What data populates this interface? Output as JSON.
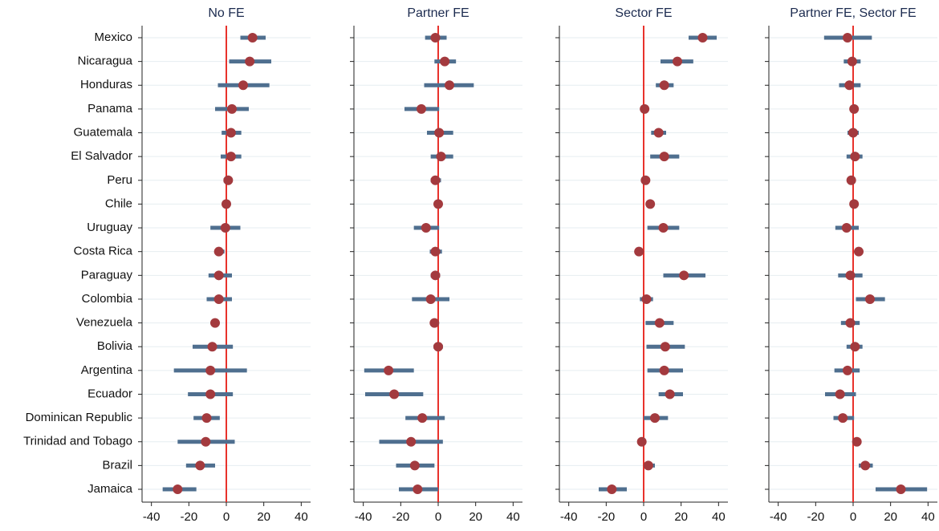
{
  "chart_data": [
    {
      "type": "coefplot",
      "title": "No FE",
      "categories": [
        "Mexico",
        "Nicaragua",
        "Honduras",
        "Panama",
        "Guatemala",
        "El Salvador",
        "Peru",
        "Chile",
        "Uruguay",
        "Costa Rica",
        "Paraguay",
        "Colombia",
        "Venezuela",
        "Bolivia",
        "Argentina",
        "Ecuador",
        "Dominican Republic",
        "Trinidad and Tobago",
        "Brazil",
        "Jamaica"
      ],
      "values": [
        14,
        12.5,
        9,
        3,
        2.5,
        2.5,
        1,
        0,
        -0.5,
        -4,
        -4,
        -4,
        -6,
        -7.5,
        -8.5,
        -8.5,
        -10.5,
        -11,
        -14,
        -26
      ],
      "lower": [
        7.5,
        1.5,
        -4.5,
        -6,
        -2.5,
        -3,
        -1.5,
        -1,
        -8.5,
        -6,
        -9.5,
        -10.5,
        -7,
        -18,
        -28,
        -20.5,
        -17.5,
        -26,
        -21.5,
        -34
      ],
      "upper": [
        21,
        24,
        23,
        12,
        8,
        8,
        3,
        1,
        7.5,
        -1,
        3,
        3,
        -5,
        3.5,
        11,
        3.5,
        -3.5,
        4.5,
        -6,
        -16
      ],
      "xlim": [
        -45,
        45
      ],
      "xticks": [
        -40,
        -20,
        0,
        20,
        40
      ],
      "reference_line": 0,
      "point_color": "#a33a3e",
      "ci_color": "#4f6f8f",
      "reference_color": "#e8322c"
    },
    {
      "type": "coefplot",
      "title": "Partner FE",
      "values": [
        -1.5,
        3.5,
        6,
        -9,
        0.5,
        1.5,
        -1.5,
        0,
        -6.5,
        -1.5,
        -1.5,
        -4,
        -2,
        0,
        -26.5,
        -23.5,
        -8.5,
        -14.5,
        -12.5,
        -11
      ],
      "lower": [
        -7,
        -2,
        -7.5,
        -18,
        -6,
        -4,
        -4,
        -1,
        -13,
        -4.5,
        -4,
        -14,
        -3,
        -2.5,
        -39.5,
        -39,
        -17.5,
        -31.5,
        -22.5,
        -21
      ],
      "upper": [
        4.5,
        9.5,
        19,
        0.5,
        8,
        8,
        1.5,
        1,
        0.5,
        2,
        1,
        6,
        -1,
        2.5,
        -13,
        -8,
        3.5,
        2.5,
        -2,
        0
      ],
      "xlim": [
        -45,
        45
      ],
      "xticks": [
        -40,
        -20,
        0,
        20,
        40
      ],
      "reference_line": 0,
      "point_color": "#a33a3e",
      "ci_color": "#4f6f8f",
      "reference_color": "#e8322c"
    },
    {
      "type": "coefplot",
      "title": "Sector FE",
      "values": [
        31.5,
        18,
        11,
        0.5,
        8,
        11,
        1,
        3.5,
        10.5,
        -2.5,
        21.5,
        1.5,
        8.5,
        11.5,
        11,
        14,
        6,
        -1,
        2.5,
        -17
      ],
      "lower": [
        24,
        9,
        6.5,
        0,
        4,
        3.5,
        0.5,
        1.5,
        2,
        -3,
        10.5,
        -2,
        1,
        1.5,
        2,
        8,
        0,
        -1.5,
        1,
        -24
      ],
      "upper": [
        39,
        26.5,
        16,
        1,
        12,
        19,
        1.5,
        5.5,
        19,
        -2,
        33,
        5,
        16,
        22,
        21,
        21,
        13,
        -0.5,
        6,
        -9
      ],
      "xlim": [
        -45,
        45
      ],
      "xticks": [
        -40,
        -20,
        0,
        20,
        40
      ],
      "reference_line": 0,
      "point_color": "#a33a3e",
      "ci_color": "#4f6f8f",
      "reference_color": "#e8322c"
    },
    {
      "type": "coefplot",
      "title": "Partner FE, Sector FE",
      "values": [
        -3,
        -0.5,
        -2,
        0.5,
        0,
        1,
        -1,
        0.5,
        -3.5,
        3,
        -1.5,
        9,
        -1.5,
        1,
        -3,
        -7,
        -5.5,
        2,
        6.5,
        25.5
      ],
      "lower": [
        -15.5,
        -5,
        -7.5,
        0,
        -3,
        -3.5,
        -1.5,
        0,
        -9.5,
        1.5,
        -8,
        1.5,
        -6.5,
        -3.5,
        -10,
        -15,
        -10.5,
        1.5,
        3,
        12
      ],
      "upper": [
        10,
        4,
        4,
        1,
        3,
        5,
        -0.5,
        1,
        3,
        4.5,
        5,
        17,
        3.5,
        5,
        3.5,
        1.5,
        0.5,
        2.5,
        10.5,
        39.5
      ],
      "xlim": [
        -45,
        45
      ],
      "xticks": [
        -40,
        -20,
        0,
        20,
        40
      ],
      "reference_line": 0,
      "point_color": "#a33a3e",
      "ci_color": "#4f6f8f",
      "reference_color": "#e8322c"
    }
  ]
}
